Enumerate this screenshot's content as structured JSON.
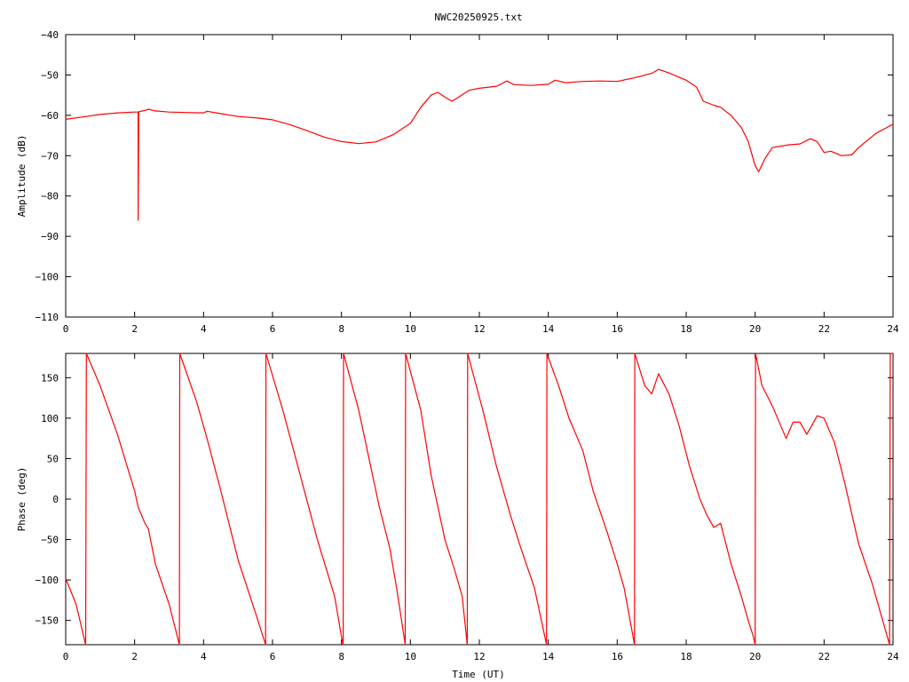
{
  "title": "NWC20250925.txt",
  "colors": {
    "trace": "#ff0000",
    "axis": "#000000",
    "background": "#ffffff"
  },
  "chart_data": [
    {
      "type": "line",
      "title": "NWC20250925.txt",
      "xlabel": "",
      "ylabel": "Amplitude (dB)",
      "xlim": [
        0,
        24
      ],
      "ylim": [
        -110,
        -40
      ],
      "xticks": [
        0,
        2,
        4,
        6,
        8,
        10,
        12,
        14,
        16,
        18,
        20,
        22,
        24
      ],
      "yticks": [
        -110,
        -100,
        -90,
        -80,
        -70,
        -60,
        -50,
        -40
      ],
      "xtick_labels": [
        "0",
        "2",
        "4",
        "6",
        "8",
        "10",
        "12",
        "14",
        "16",
        "18",
        "20",
        "22",
        "24"
      ],
      "ytick_labels": [
        "−110",
        "−100",
        "−90",
        "−80",
        "−70",
        "−60",
        "−50",
        "−40"
      ],
      "grid": false,
      "series": [
        {
          "points": [
            [
              0,
              -61
            ],
            [
              0.5,
              -60.4
            ],
            [
              1,
              -59.8
            ],
            [
              1.5,
              -59.4
            ],
            [
              2,
              -59.2
            ],
            [
              2.1,
              -59.2
            ],
            [
              2.1,
              -86
            ],
            [
              2.12,
              -59.1
            ],
            [
              2.3,
              -58.8
            ],
            [
              2.4,
              -58.5
            ],
            [
              2.6,
              -58.9
            ],
            [
              3,
              -59.2
            ],
            [
              3.5,
              -59.3
            ],
            [
              4,
              -59.4
            ],
            [
              4.1,
              -59
            ],
            [
              4.5,
              -59.6
            ],
            [
              5,
              -60.3
            ],
            [
              5.5,
              -60.6
            ],
            [
              6,
              -61.1
            ],
            [
              6.5,
              -62.3
            ],
            [
              7,
              -63.8
            ],
            [
              7.5,
              -65.4
            ],
            [
              8,
              -66.5
            ],
            [
              8.5,
              -67
            ],
            [
              9,
              -66.6
            ],
            [
              9.5,
              -64.8
            ],
            [
              10,
              -62
            ],
            [
              10.3,
              -58
            ],
            [
              10.6,
              -55
            ],
            [
              10.8,
              -54.3
            ],
            [
              11,
              -55.5
            ],
            [
              11.2,
              -56.5
            ],
            [
              11.4,
              -55.5
            ],
            [
              11.7,
              -53.8
            ],
            [
              12,
              -53.3
            ],
            [
              12.5,
              -52.8
            ],
            [
              12.8,
              -51.5
            ],
            [
              13,
              -52.4
            ],
            [
              13.5,
              -52.6
            ],
            [
              14,
              -52.3
            ],
            [
              14.2,
              -51.3
            ],
            [
              14.5,
              -51.9
            ],
            [
              15,
              -51.6
            ],
            [
              15.5,
              -51.5
            ],
            [
              16,
              -51.6
            ],
            [
              16.5,
              -50.7
            ],
            [
              17,
              -49.6
            ],
            [
              17.2,
              -48.6
            ],
            [
              17.5,
              -49.5
            ],
            [
              18,
              -51.3
            ],
            [
              18.3,
              -53
            ],
            [
              18.5,
              -56.5
            ],
            [
              18.8,
              -57.5
            ],
            [
              19,
              -58
            ],
            [
              19.3,
              -60
            ],
            [
              19.6,
              -63
            ],
            [
              19.8,
              -66.5
            ],
            [
              20,
              -72.5
            ],
            [
              20.1,
              -74
            ],
            [
              20.3,
              -70.5
            ],
            [
              20.5,
              -68
            ],
            [
              21,
              -67.3
            ],
            [
              21.3,
              -67.1
            ],
            [
              21.6,
              -65.8
            ],
            [
              21.8,
              -66.5
            ],
            [
              22,
              -69.2
            ],
            [
              22.2,
              -68.9
            ],
            [
              22.5,
              -70
            ],
            [
              22.8,
              -69.8
            ],
            [
              23,
              -68
            ],
            [
              23.5,
              -64.5
            ],
            [
              24,
              -62.2
            ]
          ]
        }
      ]
    },
    {
      "type": "line",
      "title": "",
      "xlabel": "Time (UT)",
      "ylabel": "Phase (deg)",
      "xlim": [
        0,
        24
      ],
      "ylim": [
        -180,
        180
      ],
      "xticks": [
        0,
        2,
        4,
        6,
        8,
        10,
        12,
        14,
        16,
        18,
        20,
        22,
        24
      ],
      "yticks": [
        -150,
        -100,
        -50,
        0,
        50,
        100,
        150
      ],
      "xtick_labels": [
        "0",
        "2",
        "4",
        "6",
        "8",
        "10",
        "12",
        "14",
        "16",
        "18",
        "20",
        "22",
        "24"
      ],
      "ytick_labels": [
        "−150",
        "−100",
        "−50",
        "0",
        "50",
        "100",
        "150"
      ],
      "grid": false,
      "series": [
        {
          "points": [
            [
              0,
              -98
            ],
            [
              0.3,
              -130
            ],
            [
              0.58,
              -180
            ],
            [
              0.6,
              180
            ],
            [
              1,
              140
            ],
            [
              1.5,
              80
            ],
            [
              2,
              10
            ],
            [
              2.1,
              -10
            ],
            [
              2.3,
              -30
            ],
            [
              2.4,
              -37
            ],
            [
              2.6,
              -80
            ],
            [
              3,
              -130
            ],
            [
              3.3,
              -180
            ],
            [
              3.31,
              180
            ],
            [
              3.8,
              120
            ],
            [
              4.1,
              75
            ],
            [
              4.5,
              10
            ],
            [
              5,
              -75
            ],
            [
              5.5,
              -140
            ],
            [
              5.8,
              -180
            ],
            [
              5.81,
              180
            ],
            [
              6.3,
              110
            ],
            [
              6.8,
              30
            ],
            [
              7.3,
              -50
            ],
            [
              7.8,
              -120
            ],
            [
              8.0,
              -170
            ],
            [
              8.05,
              -180
            ],
            [
              8.06,
              180
            ],
            [
              8.5,
              110
            ],
            [
              8.8,
              50
            ],
            [
              9.1,
              -10
            ],
            [
              9.4,
              -60
            ],
            [
              9.6,
              -110
            ],
            [
              9.85,
              -180
            ],
            [
              9.86,
              180
            ],
            [
              10.3,
              110
            ],
            [
              10.6,
              30
            ],
            [
              11,
              -50
            ],
            [
              11.3,
              -90
            ],
            [
              11.5,
              -120
            ],
            [
              11.65,
              -180
            ],
            [
              11.66,
              180
            ],
            [
              12.1,
              110
            ],
            [
              12.5,
              40
            ],
            [
              12.9,
              -20
            ],
            [
              13.2,
              -60
            ],
            [
              13.6,
              -110
            ],
            [
              13.95,
              -180
            ],
            [
              13.96,
              180
            ],
            [
              14.3,
              140
            ],
            [
              14.6,
              100
            ],
            [
              15,
              60
            ],
            [
              15.3,
              10
            ],
            [
              15.7,
              -40
            ],
            [
              16.0,
              -80
            ],
            [
              16.2,
              -110
            ],
            [
              16.5,
              -180
            ],
            [
              16.51,
              180
            ],
            [
              16.8,
              140
            ],
            [
              17,
              130
            ],
            [
              17.2,
              155
            ],
            [
              17.5,
              130
            ],
            [
              17.8,
              90
            ],
            [
              18.1,
              40
            ],
            [
              18.4,
              0
            ],
            [
              18.6,
              -20
            ],
            [
              18.8,
              -35
            ],
            [
              19,
              -30
            ],
            [
              19.3,
              -80
            ],
            [
              19.6,
              -120
            ],
            [
              19.8,
              -150
            ],
            [
              19.95,
              -170
            ],
            [
              20,
              -180
            ],
            [
              20.01,
              180
            ],
            [
              20.2,
              140
            ],
            [
              20.5,
              115
            ],
            [
              20.9,
              75
            ],
            [
              21.1,
              95
            ],
            [
              21.3,
              95
            ],
            [
              21.5,
              80
            ],
            [
              21.8,
              103
            ],
            [
              22,
              100
            ],
            [
              22.3,
              70
            ],
            [
              22.6,
              20
            ],
            [
              23,
              -55
            ],
            [
              23.4,
              -105
            ],
            [
              23.8,
              -165
            ],
            [
              23.9,
              -180
            ],
            [
              23.92,
              180
            ],
            [
              24,
              180
            ]
          ]
        }
      ]
    }
  ]
}
